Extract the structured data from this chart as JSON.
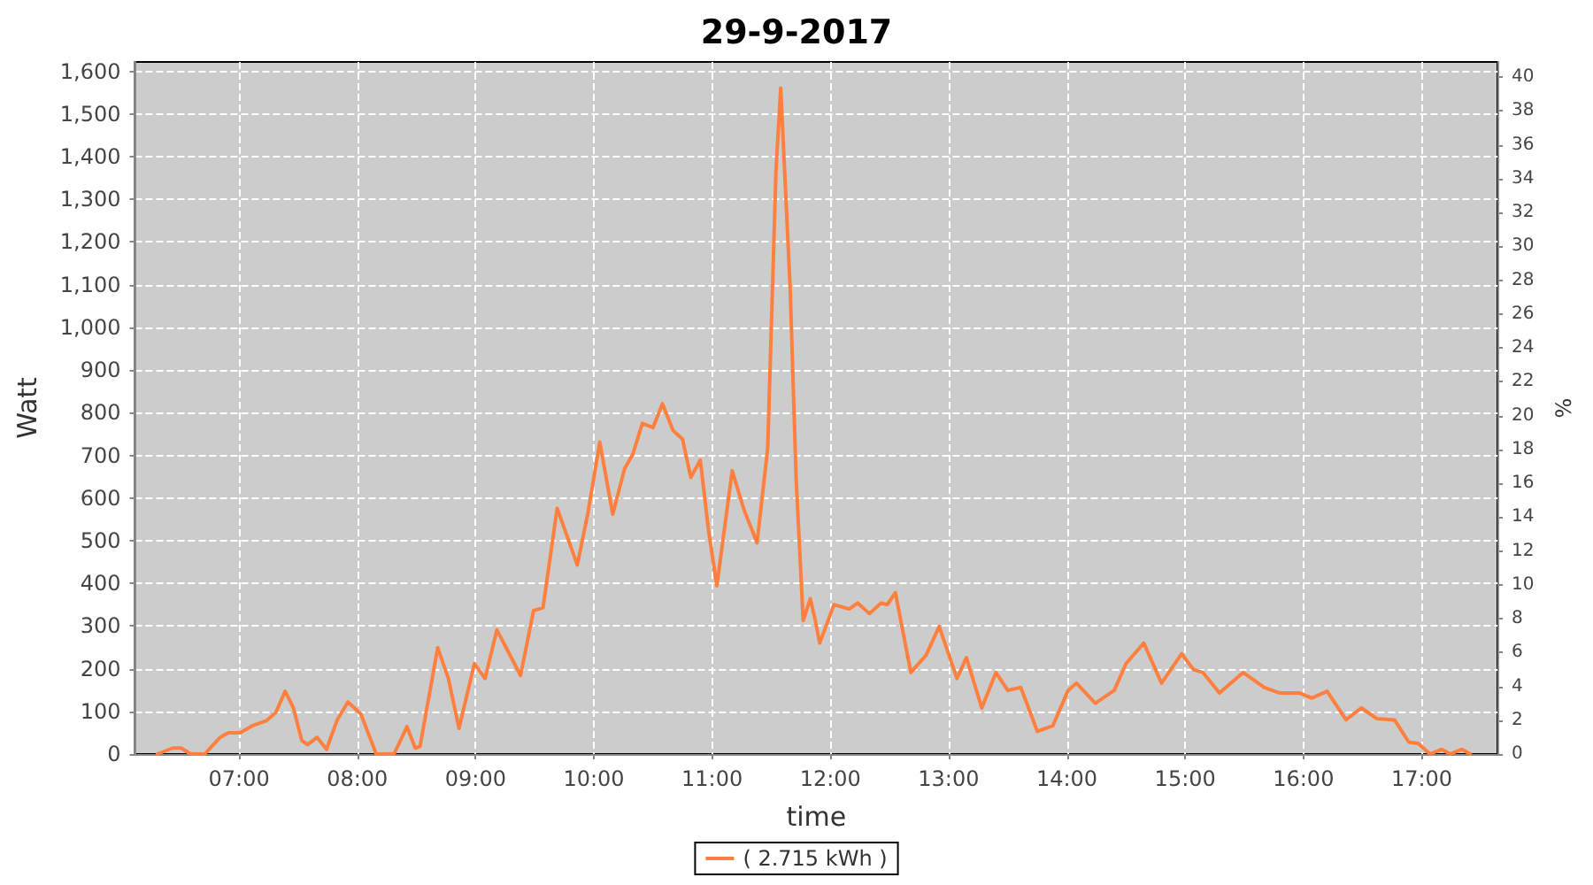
{
  "chart_data": {
    "type": "line",
    "title": "29-9-2017",
    "xlabel": "time",
    "ylabel": "Watt",
    "y2label": "%",
    "xlim": [
      6.12,
      17.64
    ],
    "xticks": [
      {
        "value": 7,
        "label": "07:00"
      },
      {
        "value": 8,
        "label": "08:00"
      },
      {
        "value": 9,
        "label": "09:00"
      },
      {
        "value": 10,
        "label": "10:00"
      },
      {
        "value": 11,
        "label": "11:00"
      },
      {
        "value": 12,
        "label": "12:00"
      },
      {
        "value": 13,
        "label": "13:00"
      },
      {
        "value": 14,
        "label": "14:00"
      },
      {
        "value": 15,
        "label": "15:00"
      },
      {
        "value": 16,
        "label": "16:00"
      },
      {
        "value": 17,
        "label": "17:00"
      }
    ],
    "ylim": [
      0,
      1622
    ],
    "yticks": [
      0,
      100,
      200,
      300,
      400,
      500,
      600,
      700,
      800,
      900,
      {
        "value": 1000,
        "label": "1,000"
      },
      {
        "value": 1100,
        "label": "1,100"
      },
      {
        "value": 1200,
        "label": "1,200"
      },
      {
        "value": 1300,
        "label": "1,300"
      },
      {
        "value": 1400,
        "label": "1,400"
      },
      {
        "value": 1500,
        "label": "1,500"
      },
      {
        "value": 1600,
        "label": "1,600"
      }
    ],
    "y2lim": [
      0,
      40.9
    ],
    "y2ticks": [
      0,
      2,
      4,
      6,
      8,
      10,
      12,
      14,
      16,
      18,
      20,
      22,
      24,
      26,
      28,
      30,
      32,
      34,
      36,
      38,
      40
    ],
    "grid": true,
    "legend": "bottom",
    "marker": "none",
    "line_style": "solid",
    "x": [
      6.31,
      6.44,
      6.51,
      6.59,
      6.71,
      6.84,
      6.91,
      7.01,
      7.11,
      7.23,
      7.31,
      7.39,
      7.46,
      7.53,
      7.58,
      7.66,
      7.74,
      7.83,
      7.92,
      8.03,
      8.16,
      8.31,
      8.42,
      8.49,
      8.53,
      8.68,
      8.77,
      8.86,
      8.99,
      9.08,
      9.18,
      9.38,
      9.49,
      9.57,
      9.69,
      9.86,
      9.95,
      10.05,
      10.16,
      10.26,
      10.33,
      10.41,
      10.5,
      10.58,
      10.67,
      10.75,
      10.82,
      10.9,
      10.97,
      11.04,
      11.17,
      11.27,
      11.38,
      11.47,
      11.54,
      11.58,
      11.66,
      11.71,
      11.77,
      11.83,
      11.87,
      11.91,
      12.03,
      12.16,
      12.23,
      12.33,
      12.43,
      12.48,
      12.55,
      12.68,
      12.81,
      12.92,
      13.07,
      13.15,
      13.28,
      13.4,
      13.5,
      13.61,
      13.75,
      13.88,
      14.01,
      14.08,
      14.24,
      14.4,
      14.5,
      14.65,
      14.8,
      14.97,
      15.07,
      15.15,
      15.29,
      15.49,
      15.67,
      15.8,
      15.97,
      16.07,
      16.2,
      16.36,
      16.49,
      16.62,
      16.77,
      16.89,
      16.97,
      17.07,
      17.17,
      17.24,
      17.34,
      17.41
    ],
    "series": [
      {
        "name": "( 2.715 kWh )",
        "color": "#ff7f3f",
        "values": [
          0,
          14,
          14,
          0,
          0,
          39,
          50,
          50,
          66,
          78,
          97,
          147,
          108,
          32,
          22,
          39,
          11,
          80,
          122,
          94,
          0,
          0,
          64,
          14,
          18,
          249,
          177,
          60,
          212,
          177,
          291,
          184,
          336,
          343,
          576,
          443,
          565,
          731,
          562,
          669,
          703,
          775,
          765,
          821,
          758,
          738,
          648,
          689,
          523,
          394,
          664,
          572,
          495,
          717,
          1367,
          1561,
          1091,
          648,
          313,
          364,
          316,
          260,
          350,
          340,
          354,
          329,
          354,
          350,
          378,
          191,
          232,
          299,
          177,
          226,
          108,
          191,
          149,
          156,
          53,
          66,
          149,
          166,
          119,
          149,
          212,
          260,
          166,
          235,
          198,
          191,
          143,
          191,
          156,
          143,
          143,
          131,
          147,
          80,
          108,
          83,
          80,
          28,
          25,
          0,
          11,
          0,
          11,
          0
        ]
      }
    ]
  }
}
